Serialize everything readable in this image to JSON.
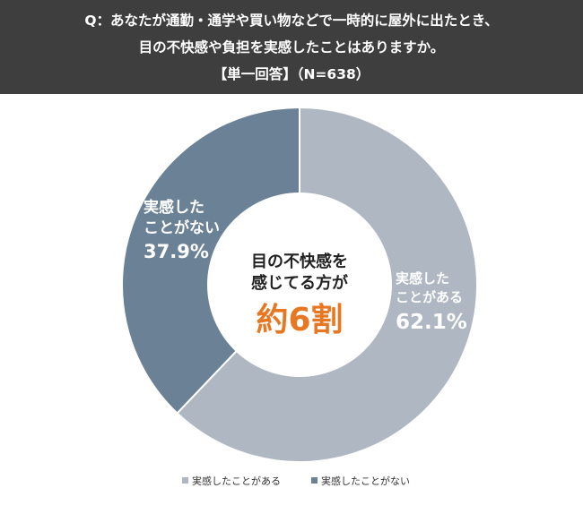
{
  "header": {
    "line1": "Q：あなたが通勤・通学や買い物などで一時的に屋外に出たとき、",
    "line2": "目の不快感や負担を実感したことはありますか。",
    "line3": "【単一回答】（N=638）"
  },
  "center": {
    "line1": "目の不快感を",
    "line2": "感じてる方が",
    "highlight": "約6割"
  },
  "chart_data": {
    "type": "pie",
    "categories": [
      "実感したことがある",
      "実感したことがない"
    ],
    "values": [
      62.1,
      37.9
    ],
    "unit": "%",
    "colors": [
      "#aeb7c2",
      "#6b8196"
    ],
    "segment_labels": [
      {
        "line1": "実感した",
        "line2": "ことがある",
        "value": "62.1%"
      },
      {
        "line1": "実感した",
        "line2": "ことがない",
        "value": "37.9%"
      }
    ],
    "legend_position": "bottom"
  }
}
